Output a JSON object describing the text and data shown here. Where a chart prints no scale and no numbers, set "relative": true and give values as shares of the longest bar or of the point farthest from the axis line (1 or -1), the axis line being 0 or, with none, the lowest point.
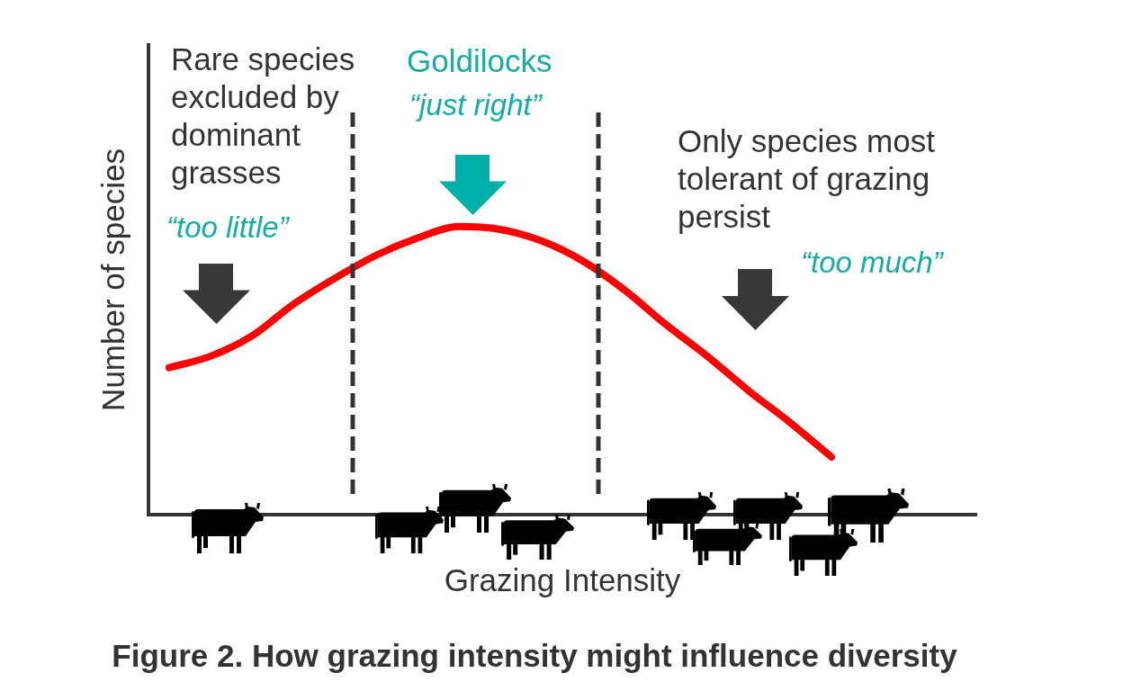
{
  "chart_data": {
    "type": "line",
    "title": "Figure 2. How grazing intensity might influence diversity",
    "xlabel": "Grazing Intensity",
    "ylabel": "Number of species",
    "categories": [
      null,
      null,
      null,
      null,
      null,
      null,
      null,
      null,
      null,
      null,
      null,
      null,
      null,
      null,
      null,
      null,
      null,
      null,
      null,
      null
    ],
    "series": [
      {
        "color": "#ff0000",
        "values": [
          0.51,
          0.55,
          0.62,
          0.73,
          0.82,
          0.9,
          0.96,
          1,
          0.99,
          0.95,
          0.88,
          0.78,
          0.66,
          0.55,
          0.43,
          0.32,
          0.2,
          null,
          null,
          null
        ]
      }
    ],
    "relative": true,
    "marker": "none",
    "annotations": [
      "Rare species excluded by dominant grasses",
      "“too little”",
      "Goldilocks",
      "“just right”",
      "Only species most tolerant of grazing persist",
      "“too much”"
    ]
  }
}
